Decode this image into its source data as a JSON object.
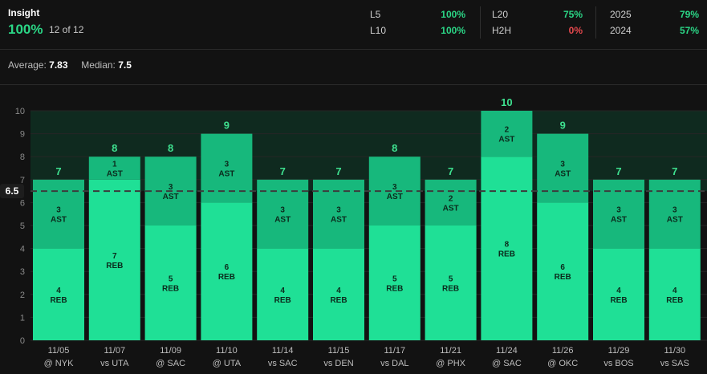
{
  "insight": {
    "title": "Insight",
    "hit_rate": "100%",
    "count": "12 of 12"
  },
  "splits": [
    {
      "label": "L5",
      "value": "100%",
      "status": "good"
    },
    {
      "label": "L10",
      "value": "100%",
      "status": "good"
    },
    {
      "label": "L20",
      "value": "75%",
      "status": "good"
    },
    {
      "label": "H2H",
      "value": "0%",
      "status": "bad"
    },
    {
      "label": "2025",
      "value": "79%",
      "status": "good"
    },
    {
      "label": "2024",
      "value": "57%",
      "status": "good"
    }
  ],
  "summary": {
    "average_label": "Average:",
    "average_value": "7.83",
    "median_label": "Median:",
    "median_value": "7.5"
  },
  "colors": {
    "good": "#2bd686",
    "bad": "#e5484d",
    "reb": "#1fe096",
    "ast": "#17b87c",
    "total_label": "#3ee08f",
    "line_band": "#0f2a1f"
  },
  "chart_data": {
    "type": "bar",
    "stacked": true,
    "line_value": 6.5,
    "line_label": "6.5",
    "ylim": [
      0,
      10
    ],
    "yticks": [
      "0",
      "1",
      "2",
      "3",
      "4",
      "5",
      "6",
      "7",
      "8",
      "9",
      "10"
    ],
    "categories": [
      {
        "date": "11/05",
        "opp": "@ NYK"
      },
      {
        "date": "11/07",
        "opp": "vs UTA"
      },
      {
        "date": "11/09",
        "opp": "@ SAC"
      },
      {
        "date": "11/10",
        "opp": "@ UTA"
      },
      {
        "date": "11/14",
        "opp": "vs SAC"
      },
      {
        "date": "11/15",
        "opp": "vs DEN"
      },
      {
        "date": "11/17",
        "opp": "vs DAL"
      },
      {
        "date": "11/21",
        "opp": "@ PHX"
      },
      {
        "date": "11/24",
        "opp": "@ SAC"
      },
      {
        "date": "11/26",
        "opp": "@ OKC"
      },
      {
        "date": "11/29",
        "opp": "vs BOS"
      },
      {
        "date": "11/30",
        "opp": "vs SAS"
      }
    ],
    "series": [
      {
        "name": "REB",
        "values": [
          4,
          7,
          5,
          6,
          4,
          4,
          5,
          5,
          8,
          6,
          4,
          4
        ]
      },
      {
        "name": "AST",
        "values": [
          3,
          1,
          3,
          3,
          3,
          3,
          3,
          2,
          2,
          3,
          3,
          3
        ]
      }
    ],
    "totals": [
      "7",
      "8",
      "8",
      "9",
      "7",
      "7",
      "8",
      "7",
      "10",
      "9",
      "7",
      "7"
    ]
  }
}
